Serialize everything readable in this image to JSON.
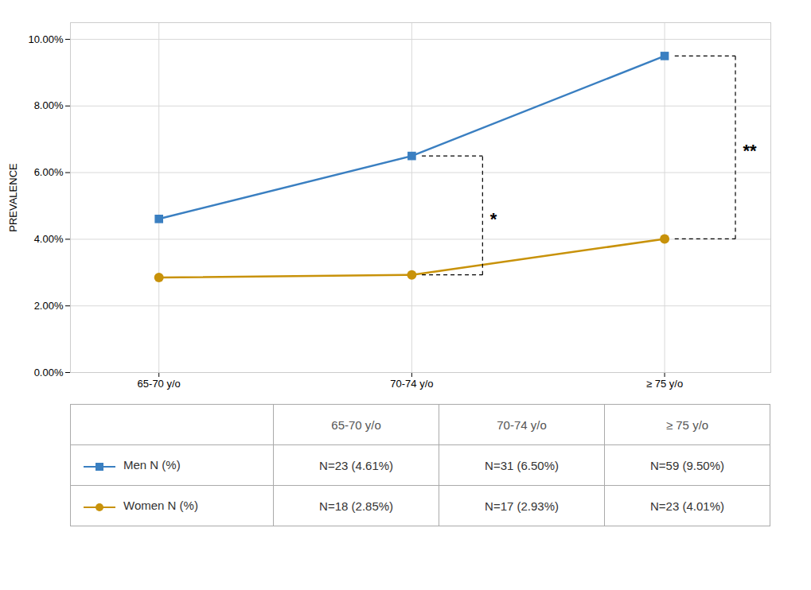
{
  "chart_data": {
    "type": "line",
    "categories": [
      "65-70 y/o",
      "70-74 y/o",
      "≥ 75 y/o"
    ],
    "series": [
      {
        "name": "Men N (%)",
        "color": "#3A7FC1",
        "marker": "square",
        "values": [
          0.0461,
          0.065,
          0.095
        ]
      },
      {
        "name": "Women N (%)",
        "color": "#C8920A",
        "marker": "circle",
        "values": [
          0.0285,
          0.0293,
          0.0401
        ]
      }
    ],
    "ylabel": "PREVALENCE",
    "ylim": [
      0.0,
      0.105
    ],
    "yticks": [
      {
        "value": 0.0,
        "label": "0.00%"
      },
      {
        "value": 0.02,
        "label": "2.00%"
      },
      {
        "value": 0.04,
        "label": "4.00%"
      },
      {
        "value": 0.06,
        "label": "6.00%"
      },
      {
        "value": 0.08,
        "label": "8.00%"
      },
      {
        "value": 0.1,
        "label": "10.00%"
      }
    ],
    "grid": true,
    "annotations": [
      {
        "text": "*",
        "category": "70-74 y/o"
      },
      {
        "text": "**",
        "category": "≥ 75 y/o"
      }
    ],
    "table": [
      {
        "name": "Men N (%)",
        "cells": [
          "N=23 (4.61%)",
          "N=31 (6.50%)",
          "N=59 (9.50%)"
        ]
      },
      {
        "name": "Women N (%)",
        "cells": [
          "N=18 (2.85%)",
          "N=17 (2.93%)",
          "N=23 (4.01%)"
        ]
      }
    ]
  }
}
